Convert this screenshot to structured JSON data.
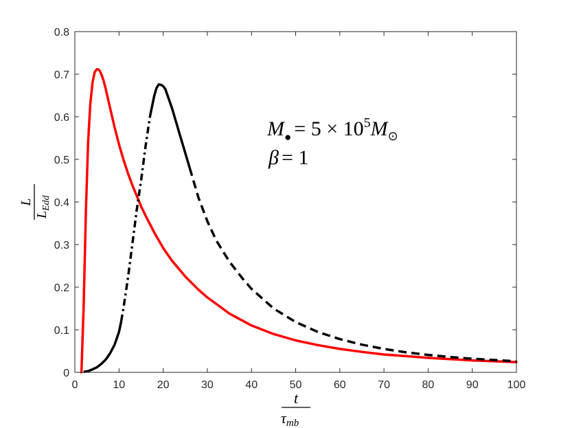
{
  "chart_data": {
    "type": "line",
    "xlim": [
      0,
      100
    ],
    "ylim": [
      0,
      0.8
    ],
    "xticks": [
      0,
      10,
      20,
      30,
      40,
      50,
      60,
      70,
      80,
      90,
      100
    ],
    "yticks": [
      0,
      0.1,
      0.2,
      0.3,
      0.4,
      0.5,
      0.6,
      0.7,
      0.8
    ],
    "xlabel": {
      "numerator": "t",
      "denominator": "τ",
      "denominator_sub": "mb"
    },
    "ylabel": {
      "numerator": "L",
      "denominator": "L",
      "denominator_sub": "Edd"
    },
    "grid": false,
    "legend": "none",
    "annotation": {
      "line1": {
        "mass_symbol": "M",
        "mass_sub": "●",
        "equals": "= 5 × 10",
        "exponent": "5",
        "unit_symbol": "M",
        "unit_sub": "⊙"
      },
      "line2": {
        "symbol": "β",
        "equals": "= 1"
      }
    },
    "series": [
      {
        "color": "#ff0000",
        "style": "solid",
        "x": [
          1.5,
          2.0,
          2.5,
          3.0,
          3.5,
          4.0,
          4.5,
          5.0,
          5.5,
          6.0,
          6.5,
          7.0,
          8.0,
          9.0,
          10.0,
          11.0,
          12.0,
          13.0,
          14.0,
          15.0,
          16.0,
          18.0,
          20.0,
          22.0,
          25.0,
          28.0,
          30.0,
          35.0,
          40.0,
          45.0,
          50.0,
          55.0,
          60.0,
          65.0,
          70.0,
          75.0,
          80.0,
          85.0,
          90.0,
          95.0,
          100.0
        ],
        "y": [
          0.0,
          0.16,
          0.38,
          0.54,
          0.63,
          0.68,
          0.705,
          0.712,
          0.71,
          0.7,
          0.685,
          0.665,
          0.62,
          0.575,
          0.535,
          0.5,
          0.468,
          0.44,
          0.415,
          0.39,
          0.368,
          0.328,
          0.292,
          0.262,
          0.225,
          0.194,
          0.176,
          0.138,
          0.11,
          0.09,
          0.075,
          0.064,
          0.055,
          0.048,
          0.042,
          0.038,
          0.034,
          0.031,
          0.028,
          0.026,
          0.024
        ]
      },
      {
        "color": "#000000",
        "style": "dash-dot-dash",
        "x": [
          2.0,
          3.0,
          4.0,
          5.0,
          6.0,
          7.0,
          8.0,
          9.0,
          10.0,
          10.5,
          11.0,
          12.0,
          13.0,
          14.0,
          15.0,
          16.0,
          17.0,
          18.0,
          18.5,
          19.0,
          19.5,
          20.0,
          20.5,
          21.0,
          22.0,
          23.0,
          24.0,
          25.0,
          26.0,
          27.0,
          28.0,
          30.0,
          32.0,
          35.0,
          38.0,
          40.0,
          45.0,
          50.0,
          55.0,
          60.0,
          65.0,
          70.0,
          75.0,
          80.0,
          85.0,
          90.0,
          95.0,
          100.0
        ],
        "y": [
          0.001,
          0.003,
          0.007,
          0.012,
          0.02,
          0.03,
          0.045,
          0.065,
          0.095,
          0.12,
          0.15,
          0.22,
          0.3,
          0.38,
          0.45,
          0.53,
          0.6,
          0.65,
          0.668,
          0.676,
          0.675,
          0.672,
          0.665,
          0.65,
          0.62,
          0.585,
          0.55,
          0.515,
          0.48,
          0.445,
          0.41,
          0.355,
          0.31,
          0.26,
          0.22,
          0.196,
          0.15,
          0.118,
          0.095,
          0.078,
          0.065,
          0.055,
          0.047,
          0.041,
          0.036,
          0.032,
          0.029,
          0.026
        ]
      }
    ]
  }
}
